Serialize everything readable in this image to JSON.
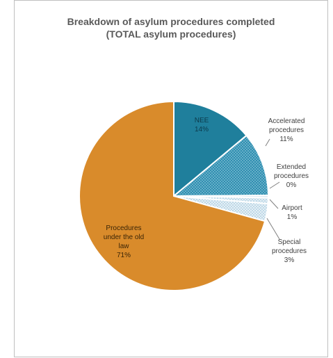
{
  "chart_data": {
    "type": "pie",
    "title": "Breakdown of asylum procedures completed",
    "subtitle": "(TOTAL asylum procedures)",
    "slices": [
      {
        "label": [
          "NEE",
          "14%"
        ],
        "value": 14,
        "color": "#1f7f9c",
        "pattern": "solid"
      },
      {
        "label": [
          "Accelerated",
          "procedures",
          "11%"
        ],
        "value": 11,
        "color": "#2b8fb0",
        "pattern": "dots-dark"
      },
      {
        "label": [
          "Extended",
          "procedures",
          "0%"
        ],
        "value": 0.4,
        "color": "#d9e7f0",
        "pattern": "solid"
      },
      {
        "label": [
          "Airport",
          "1%"
        ],
        "value": 1,
        "color": "#b9d7e8",
        "pattern": "dots-light"
      },
      {
        "label": [
          "Special",
          "procedures",
          "3%"
        ],
        "value": 3,
        "color": "#cfe3ef",
        "pattern": "dots-light"
      },
      {
        "label": [
          "Procedures",
          "under the old",
          "law",
          "71%"
        ],
        "value": 71,
        "color": "#d98b2b",
        "pattern": "solid"
      }
    ]
  }
}
